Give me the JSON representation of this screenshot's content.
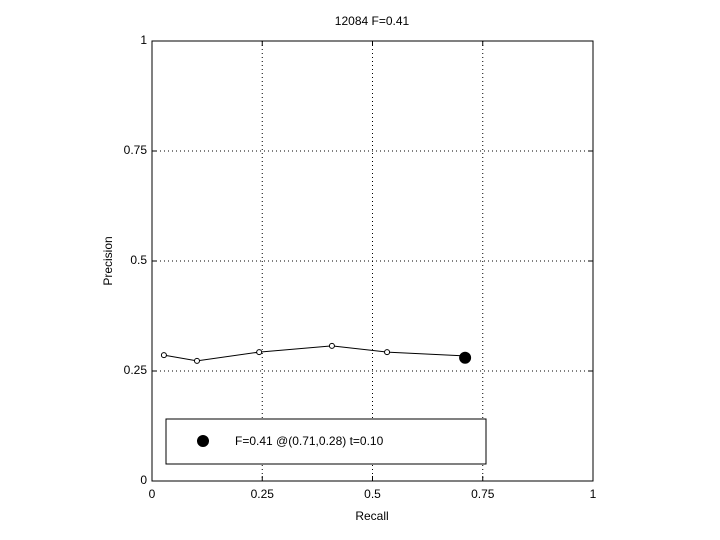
{
  "chart_data": {
    "type": "line",
    "title": "12084 F=0.41",
    "x_label": "Recall",
    "y_label": "Precision",
    "xlim": [
      0,
      1
    ],
    "ylim": [
      0,
      1
    ],
    "xticks": [
      0,
      0.25,
      0.5,
      0.75,
      1
    ],
    "yticks": [
      0,
      0.25,
      0.5,
      0.75,
      1
    ],
    "grid": true,
    "legend": "lower left",
    "series": [
      {
        "color": "#000000",
        "marker": "open",
        "line": true,
        "x": [
          0.027,
          0.102,
          0.243,
          0.408,
          0.533,
          0.714
        ],
        "values": [
          0.286,
          0.273,
          0.293,
          0.307,
          0.293,
          0.284
        ]
      },
      {
        "name": "F=0.41 @(0.71,0.28) t=0.10",
        "color": "#000000",
        "marker": "filled",
        "line": false,
        "x": [
          0.71
        ],
        "values": [
          0.28
        ]
      }
    ]
  }
}
